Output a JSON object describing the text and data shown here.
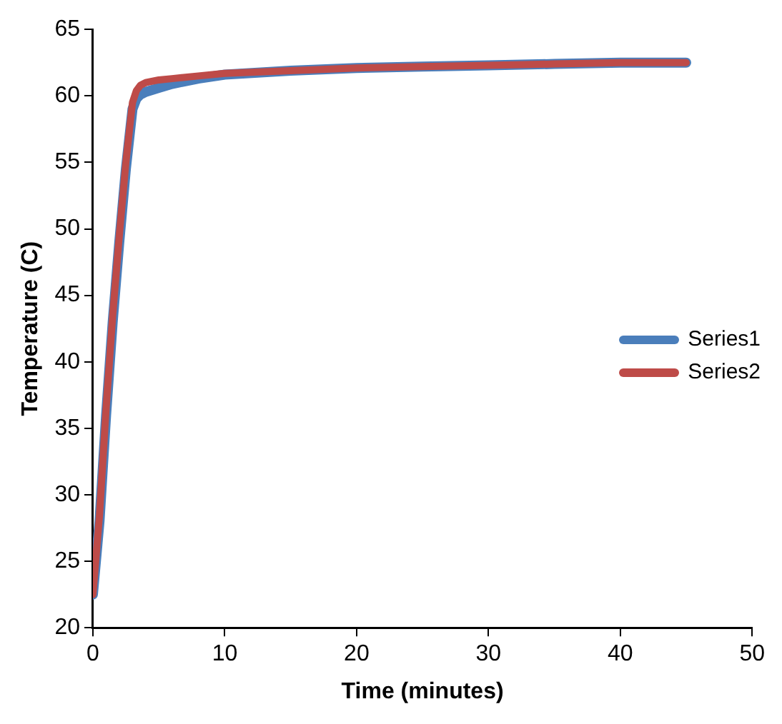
{
  "chart_data": {
    "type": "line",
    "xlabel": "Time (minutes)",
    "ylabel": "Temperature (C)",
    "xlim": [
      0,
      50
    ],
    "xticks": [
      0,
      10,
      20,
      30,
      40,
      50
    ],
    "ylim": [
      20,
      65
    ],
    "yticks": [
      20,
      25,
      30,
      35,
      40,
      45,
      50,
      55,
      60,
      65
    ],
    "grid": false,
    "legend": "right",
    "marker": "none",
    "line_style": "solid",
    "series": [
      {
        "name": "Series1",
        "color": "#4a7ebb",
        "x": [
          0,
          0.5,
          1,
          1.5,
          2,
          2.5,
          3,
          3.3,
          3.6,
          4,
          5,
          6,
          8,
          10,
          15,
          20,
          25,
          30,
          35,
          40,
          45
        ],
        "values": [
          22.5,
          28,
          36,
          43,
          49,
          54.5,
          59,
          59.8,
          60.1,
          60.3,
          60.6,
          60.9,
          61.3,
          61.6,
          61.9,
          62.1,
          62.2,
          62.3,
          62.4,
          62.5,
          62.5
        ]
      },
      {
        "name": "Series2",
        "color": "#be4b48",
        "x": [
          0,
          0.5,
          1,
          1.5,
          2,
          2.5,
          3,
          3.3,
          3.6,
          4,
          5,
          6,
          8,
          10,
          15,
          20,
          25,
          30,
          35,
          40,
          45
        ],
        "values": [
          22.5,
          28.5,
          36.5,
          43.5,
          49.5,
          55,
          59.5,
          60.4,
          60.8,
          61,
          61.2,
          61.3,
          61.5,
          61.7,
          61.9,
          62.1,
          62.2,
          62.3,
          62.4,
          62.5,
          62.5
        ]
      }
    ]
  }
}
